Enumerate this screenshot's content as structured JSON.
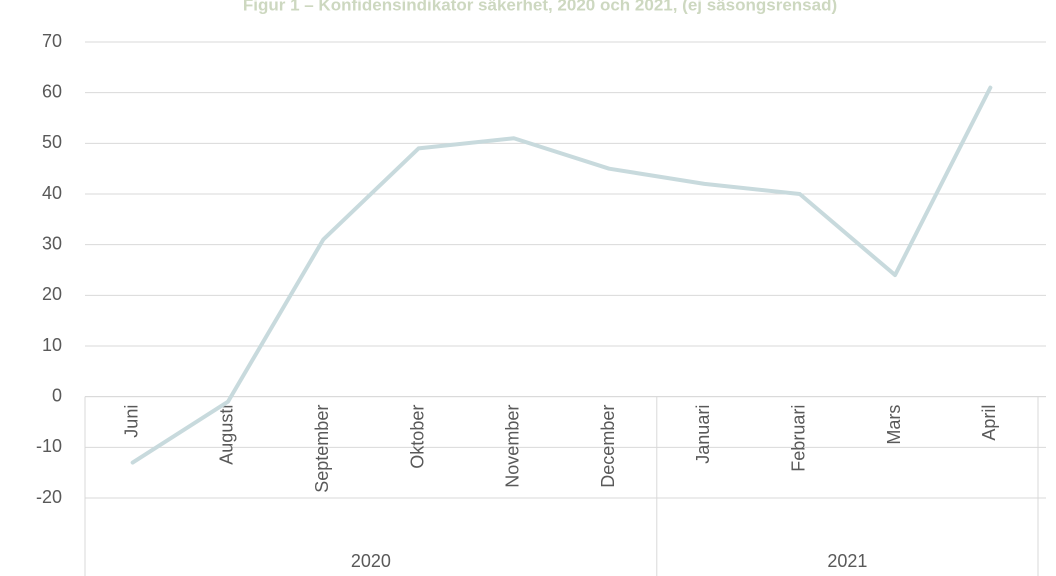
{
  "chart_data": {
    "type": "line",
    "title": "Figur 1 – Konfidensindikator säkerhet, 2020 och 2021, (ej säsongsrensad)",
    "categories": [
      "Juni",
      "Augusti",
      "September",
      "Oktober",
      "November",
      "December",
      "Januari",
      "Februari",
      "Mars",
      "April"
    ],
    "groups": [
      {
        "label": "2020",
        "span": 6
      },
      {
        "label": "2021",
        "span": 4
      }
    ],
    "series": [
      {
        "color": "#c8dadd",
        "values": [
          -13,
          -1,
          31,
          49,
          51,
          45,
          42,
          40,
          24,
          61
        ]
      }
    ],
    "ylim": [
      -20,
      70
    ],
    "yticks": [
      -20,
      -10,
      0,
      10,
      20,
      30,
      40,
      50,
      60,
      70
    ],
    "grid": true
  }
}
